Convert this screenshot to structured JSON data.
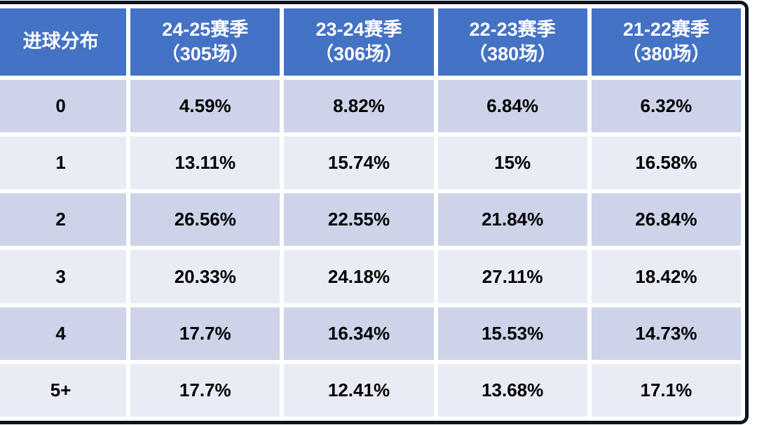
{
  "colors": {
    "header_bg": "#4472C4",
    "header_text": "#FFFFFF",
    "band_dark": "#CDD4E9",
    "band_light": "#E9EBF5",
    "frame_border": "#0D1320",
    "grid": "#FFFFFF",
    "body_text": "#000000"
  },
  "chart_data": {
    "type": "table",
    "corner_label": "进球分布",
    "columns": [
      {
        "season": "24-25赛季",
        "matches": "（305场）"
      },
      {
        "season": "23-24赛季",
        "matches": "（306场）"
      },
      {
        "season": "22-23赛季",
        "matches": "（380场）"
      },
      {
        "season": "21-22赛季",
        "matches": "（380场）"
      }
    ],
    "row_categories": [
      "0",
      "1",
      "2",
      "3",
      "4",
      "5+"
    ],
    "series": [
      {
        "name": "24-25赛季（305场）",
        "values": [
          4.59,
          13.11,
          26.56,
          20.33,
          17.7,
          17.7
        ]
      },
      {
        "name": "23-24赛季（306场）",
        "values": [
          8.82,
          15.74,
          22.55,
          24.18,
          16.34,
          12.41
        ]
      },
      {
        "name": "22-23赛季（380场）",
        "values": [
          6.84,
          15,
          21.84,
          27.11,
          15.53,
          13.68
        ]
      },
      {
        "name": "21-22赛季（380场）",
        "values": [
          6.32,
          16.58,
          26.84,
          18.42,
          14.73,
          17.1
        ]
      }
    ],
    "cells": [
      [
        "4.59%",
        "8.82%",
        "6.84%",
        "6.32%"
      ],
      [
        "13.11%",
        "15.74%",
        "15%",
        "16.58%"
      ],
      [
        "26.56%",
        "22.55%",
        "21.84%",
        "26.84%"
      ],
      [
        "20.33%",
        "24.18%",
        "27.11%",
        "18.42%"
      ],
      [
        "17.7%",
        "16.34%",
        "15.53%",
        "14.73%"
      ],
      [
        "17.7%",
        "12.41%",
        "13.68%",
        "17.1%"
      ]
    ]
  }
}
